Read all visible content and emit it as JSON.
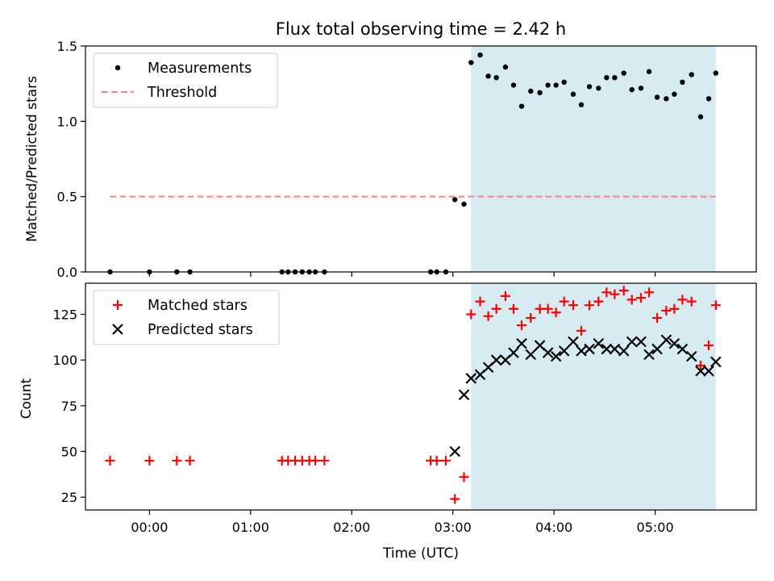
{
  "chart_data": [
    {
      "type": "scatter",
      "title": "Flux total observing time = 2.42 h",
      "xlabel": "",
      "ylabel": "Matched/Predicted stars",
      "xlim": [
        -0.6333,
        6.0
      ],
      "ylim": [
        0,
        1.5
      ],
      "yticks": [
        0,
        0.5,
        1.0,
        1.5
      ],
      "ytick_labels": [
        "0.0",
        "0.5",
        "1.0",
        "1.5"
      ],
      "xticks": [
        0,
        1,
        2,
        3,
        4,
        5
      ],
      "shaded_span": [
        3.18,
        5.6
      ],
      "legend_position": "top-left",
      "series": [
        {
          "name": "Measurements",
          "marker": "dot",
          "color": "#000000",
          "x": [
            -0.39,
            0.0,
            0.27,
            0.4,
            1.31,
            1.37,
            1.44,
            1.51,
            1.58,
            1.64,
            1.73,
            2.78,
            2.84,
            2.93,
            3.02,
            3.11,
            3.18,
            3.27,
            3.35,
            3.43,
            3.52,
            3.6,
            3.68,
            3.77,
            3.86,
            3.94,
            4.02,
            4.1,
            4.19,
            4.27,
            4.35,
            4.44,
            4.52,
            4.6,
            4.69,
            4.77,
            4.86,
            4.94,
            5.02,
            5.11,
            5.19,
            5.27,
            5.36,
            5.45,
            5.53,
            5.6
          ],
          "y": [
            0.0,
            0.0,
            0.0,
            0.0,
            0.0,
            0.0,
            0.0,
            0.0,
            0.0,
            0.0,
            0.0,
            0.0,
            0.0,
            0.0,
            0.48,
            0.45,
            1.39,
            1.44,
            1.3,
            1.29,
            1.36,
            1.24,
            1.1,
            1.2,
            1.19,
            1.24,
            1.24,
            1.26,
            1.18,
            1.11,
            1.23,
            1.22,
            1.29,
            1.29,
            1.32,
            1.21,
            1.22,
            1.33,
            1.16,
            1.15,
            1.18,
            1.26,
            1.31,
            1.03,
            1.15,
            1.32
          ]
        },
        {
          "name": "Threshold",
          "marker": "dashed-line",
          "color": "#ff7f7f",
          "x": [
            -0.39,
            5.6
          ],
          "y": [
            0.5,
            0.5
          ]
        }
      ]
    },
    {
      "type": "scatter",
      "title": "",
      "xlabel": "Time (UTC)",
      "ylabel": "Count",
      "xlim": [
        -0.6333,
        6.0
      ],
      "ylim": [
        18,
        142
      ],
      "yticks": [
        25,
        50,
        75,
        100,
        125
      ],
      "ytick_labels": [
        "25",
        "50",
        "75",
        "100",
        "125"
      ],
      "xticks": [
        0,
        1,
        2,
        3,
        4,
        5
      ],
      "xtick_labels": [
        "00:00",
        "01:00",
        "02:00",
        "03:00",
        "04:00",
        "05:00"
      ],
      "shaded_span": [
        3.18,
        5.6
      ],
      "legend_position": "top-left",
      "series": [
        {
          "name": "Matched stars",
          "marker": "plus",
          "color": "#ff0000",
          "x": [
            -0.39,
            0.0,
            0.27,
            0.4,
            1.31,
            1.37,
            1.44,
            1.51,
            1.58,
            1.64,
            1.73,
            2.78,
            2.84,
            2.93,
            3.02,
            3.11,
            3.18,
            3.27,
            3.35,
            3.43,
            3.52,
            3.6,
            3.68,
            3.77,
            3.86,
            3.94,
            4.02,
            4.1,
            4.19,
            4.27,
            4.35,
            4.44,
            4.52,
            4.6,
            4.69,
            4.77,
            4.86,
            4.94,
            5.02,
            5.11,
            5.19,
            5.27,
            5.36,
            5.45,
            5.53,
            5.6
          ],
          "y": [
            45,
            45,
            45,
            45,
            45,
            45,
            45,
            45,
            45,
            45,
            45,
            45,
            45,
            45,
            24,
            36,
            125,
            132,
            124,
            128,
            135,
            128,
            119,
            123,
            128,
            128,
            126,
            132,
            130,
            116,
            130,
            132,
            137,
            136,
            138,
            133,
            134,
            137,
            123,
            127,
            128,
            133,
            132,
            97,
            108,
            130
          ]
        },
        {
          "name": "Predicted stars",
          "marker": "x",
          "color": "#000000",
          "x": [
            3.02,
            3.11,
            3.18,
            3.27,
            3.35,
            3.43,
            3.52,
            3.6,
            3.68,
            3.77,
            3.86,
            3.94,
            4.02,
            4.1,
            4.19,
            4.27,
            4.35,
            4.44,
            4.52,
            4.6,
            4.69,
            4.77,
            4.86,
            4.94,
            5.02,
            5.11,
            5.19,
            5.27,
            5.36,
            5.45,
            5.53,
            5.6
          ],
          "y": [
            50,
            81,
            90,
            92,
            96,
            100,
            100,
            104,
            109,
            103,
            108,
            104,
            102,
            105,
            110,
            105,
            106,
            109,
            106,
            106,
            105,
            110,
            110,
            103,
            106,
            111,
            109,
            106,
            102,
            94,
            94,
            99
          ]
        }
      ]
    }
  ],
  "style": {
    "shade_color": "#add8e6",
    "threshold_color": "#ff7f7f",
    "matched_color": "#ff0000",
    "measure_color": "#000000"
  }
}
